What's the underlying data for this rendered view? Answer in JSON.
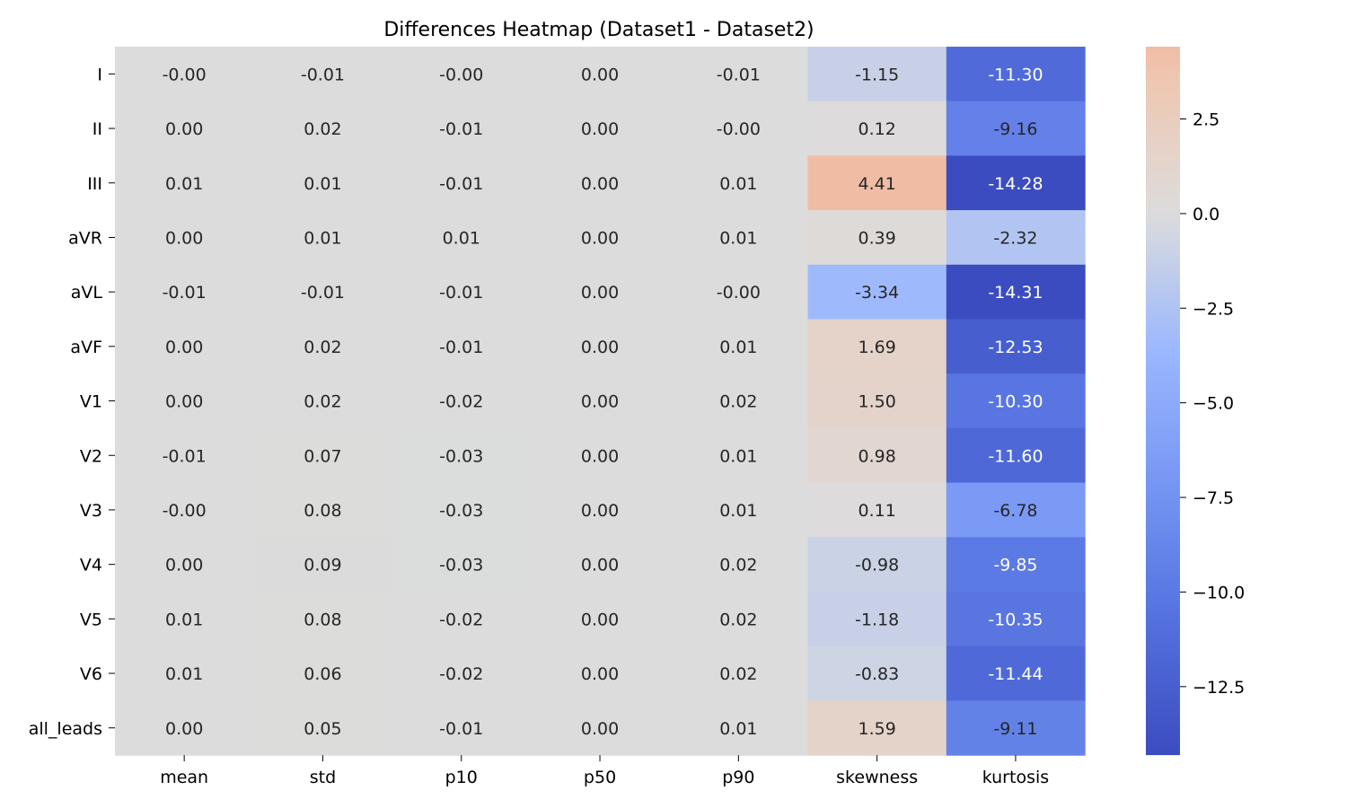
{
  "chart_data": {
    "type": "heatmap",
    "title": "Differences Heatmap (Dataset1 - Dataset2)",
    "rows": [
      "I",
      "II",
      "III",
      "aVR",
      "aVL",
      "aVF",
      "V1",
      "V2",
      "V3",
      "V4",
      "V5",
      "V6",
      "all_leads"
    ],
    "columns": [
      "mean",
      "std",
      "p10",
      "p50",
      "p90",
      "skewness",
      "kurtosis"
    ],
    "values": [
      [
        -0.0,
        -0.01,
        -0.0,
        0.0,
        -0.01,
        -1.15,
        -11.3
      ],
      [
        0.0,
        0.02,
        -0.01,
        0.0,
        -0.0,
        0.12,
        -9.16
      ],
      [
        0.01,
        0.01,
        -0.01,
        0.0,
        0.01,
        4.41,
        -14.28
      ],
      [
        0.0,
        0.01,
        0.01,
        0.0,
        0.01,
        0.39,
        -2.32
      ],
      [
        -0.01,
        -0.01,
        -0.01,
        0.0,
        -0.0,
        -3.34,
        -14.31
      ],
      [
        0.0,
        0.02,
        -0.01,
        0.0,
        0.01,
        1.69,
        -12.53
      ],
      [
        0.0,
        0.02,
        -0.02,
        0.0,
        0.02,
        1.5,
        -10.3
      ],
      [
        -0.01,
        0.07,
        -0.03,
        0.0,
        0.01,
        0.98,
        -11.6
      ],
      [
        -0.0,
        0.08,
        -0.03,
        0.0,
        0.01,
        0.11,
        -6.78
      ],
      [
        0.0,
        0.09,
        -0.03,
        0.0,
        0.02,
        -0.98,
        -9.85
      ],
      [
        0.01,
        0.08,
        -0.02,
        0.0,
        0.02,
        -1.18,
        -10.35
      ],
      [
        0.01,
        0.06,
        -0.02,
        0.0,
        0.02,
        -0.83,
        -11.44
      ],
      [
        0.0,
        0.05,
        -0.01,
        0.0,
        0.01,
        1.59,
        -9.11
      ]
    ],
    "cell_labels": [
      [
        "-0.00",
        "-0.01",
        "-0.00",
        "0.00",
        "-0.01",
        "-1.15",
        "-11.30"
      ],
      [
        "0.00",
        "0.02",
        "-0.01",
        "0.00",
        "-0.00",
        "0.12",
        "-9.16"
      ],
      [
        "0.01",
        "0.01",
        "-0.01",
        "0.00",
        "0.01",
        "4.41",
        "-14.28"
      ],
      [
        "0.00",
        "0.01",
        "0.01",
        "0.00",
        "0.01",
        "0.39",
        "-2.32"
      ],
      [
        "-0.01",
        "-0.01",
        "-0.01",
        "0.00",
        "-0.00",
        "-3.34",
        "-14.31"
      ],
      [
        "0.00",
        "0.02",
        "-0.01",
        "0.00",
        "0.01",
        "1.69",
        "-12.53"
      ],
      [
        "0.00",
        "0.02",
        "-0.02",
        "0.00",
        "0.02",
        "1.50",
        "-10.30"
      ],
      [
        "-0.01",
        "0.07",
        "-0.03",
        "0.00",
        "0.01",
        "0.98",
        "-11.60"
      ],
      [
        "-0.00",
        "0.08",
        "-0.03",
        "0.00",
        "0.01",
        "0.11",
        "-6.78"
      ],
      [
        "0.00",
        "0.09",
        "-0.03",
        "0.00",
        "0.02",
        "-0.98",
        "-9.85"
      ],
      [
        "0.01",
        "0.08",
        "-0.02",
        "0.00",
        "0.02",
        "-1.18",
        "-10.35"
      ],
      [
        "0.01",
        "0.06",
        "-0.02",
        "0.00",
        "0.02",
        "-0.83",
        "-11.44"
      ],
      [
        "0.00",
        "0.05",
        "-0.01",
        "0.00",
        "0.01",
        "1.59",
        "-9.11"
      ]
    ],
    "colormap": "coolwarm",
    "vmin": -14.31,
    "vmax": 4.41,
    "colorbar": {
      "ticks": [
        2.5,
        0.0,
        -2.5,
        -5.0,
        -7.5,
        -10.0,
        -12.5
      ],
      "tick_labels": [
        "2.5",
        "0.0",
        "−2.5",
        "−5.0",
        "−7.5",
        "−10.0",
        "−12.5"
      ]
    },
    "grid": false
  }
}
